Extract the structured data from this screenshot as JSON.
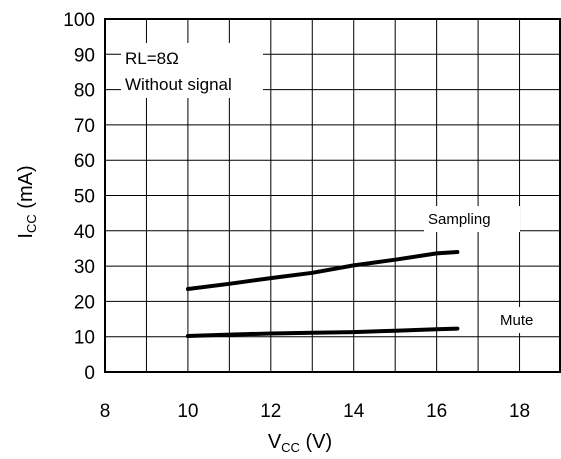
{
  "chart_data": {
    "type": "line",
    "xlim": [
      8,
      19
    ],
    "ylim": [
      0,
      100
    ],
    "xticks": [
      8,
      10,
      12,
      14,
      16,
      18
    ],
    "yticks": [
      0,
      10,
      20,
      30,
      40,
      50,
      60,
      70,
      80,
      90,
      100
    ],
    "xlabel": {
      "main": "V",
      "sub": "CC",
      "unit": " (V)"
    },
    "ylabel": {
      "main": "I",
      "sub": "CC",
      "unit": " (mA)"
    },
    "grid": true,
    "annotations": [
      "RL=8Ω",
      "Without signal"
    ],
    "series": [
      {
        "name": "Sampling",
        "x": [
          10,
          11,
          12,
          13,
          14,
          15,
          16,
          16.5
        ],
        "y": [
          23.5,
          25,
          26.6,
          28.1,
          30.2,
          31.8,
          33.6,
          34
        ]
      },
      {
        "name": "Mute",
        "x": [
          10,
          11,
          12,
          13,
          14,
          15,
          16,
          16.5
        ],
        "y": [
          10.2,
          10.6,
          10.9,
          11.1,
          11.3,
          11.7,
          12.1,
          12.3
        ]
      }
    ]
  }
}
